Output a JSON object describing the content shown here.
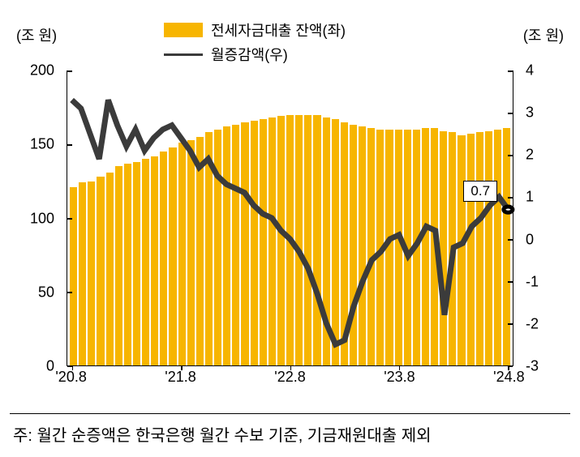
{
  "chart": {
    "type": "bar-line-combo",
    "y_label_left": "(조 원)",
    "y_label_right": "(조 원)",
    "legend": {
      "bar_label": "전세자금대출 잔액(좌)",
      "line_label": "월증감액(우)"
    },
    "colors": {
      "bar": "#f7b500",
      "line": "#3b3b3b",
      "background": "#ffffff",
      "text": "#000000",
      "axis": "#000000",
      "label_box_border": "#000000",
      "label_box_bg": "#ffffff",
      "marker_fill": "#ffffff",
      "marker_stroke": "#000000"
    },
    "y_left": {
      "min": 0,
      "max": 200,
      "ticks": [
        0,
        50,
        100,
        150,
        200
      ]
    },
    "y_right": {
      "min": -3,
      "max": 4,
      "ticks": [
        -3,
        -2,
        -1,
        0,
        1,
        2,
        3,
        4
      ]
    },
    "x_ticks": [
      "'20.8",
      "'21.8",
      "'22.8",
      "'23.8",
      "'24.8"
    ],
    "bar_values": [
      121,
      124,
      125,
      128,
      131,
      135,
      137,
      138,
      140,
      142,
      145,
      148,
      151,
      153,
      155,
      158,
      160,
      162,
      163,
      165,
      166,
      167,
      168,
      169,
      170,
      170,
      170,
      170,
      168,
      167,
      165,
      163,
      162,
      161,
      160,
      160,
      160,
      160,
      160,
      161,
      161,
      159,
      158,
      156,
      157,
      158,
      159,
      160,
      161
    ],
    "line_values": [
      3.3,
      3.1,
      2.5,
      1.9,
      3.3,
      2.7,
      2.2,
      2.6,
      2.1,
      2.4,
      2.6,
      2.7,
      2.4,
      2.1,
      1.7,
      1.9,
      1.5,
      1.3,
      1.2,
      1.1,
      0.8,
      0.6,
      0.5,
      0.2,
      0.0,
      -0.3,
      -0.7,
      -1.3,
      -2.0,
      -2.5,
      -2.4,
      -1.6,
      -1.0,
      -0.5,
      -0.3,
      0.0,
      0.1,
      -0.4,
      -0.1,
      0.3,
      0.2,
      -1.8,
      -0.2,
      -0.1,
      0.3,
      0.5,
      0.8,
      1.0,
      0.7
    ],
    "last_marker_value": 0.7,
    "data_label": "0.7",
    "line_width": 2.5,
    "marker_radius": 5,
    "fontsize_axis": 18,
    "fontsize_legend": 18,
    "fontsize_label": 17
  },
  "footnote": "주: 월간 순증액은 한국은행 월간 수보 기준, 기금재원대출 제외"
}
